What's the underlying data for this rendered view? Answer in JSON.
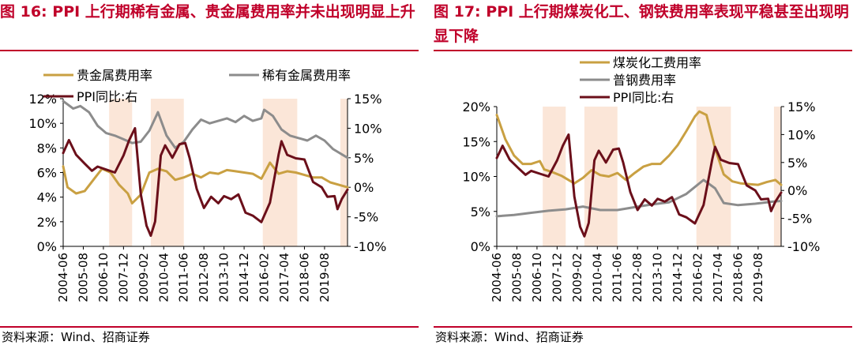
{
  "source_text": "资料来源：Wind、招商证券",
  "x_ticks": [
    "2004-06",
    "2005-08",
    "2006-10",
    "2007-12",
    "2009-02",
    "2010-04",
    "2011-06",
    "2012-08",
    "2013-10",
    "2014-12",
    "2016-02",
    "2017-04",
    "2018-06",
    "2019-08"
  ],
  "colors": {
    "title": "#C0002A",
    "gold": "#C9A042",
    "gray": "#8C8C8C",
    "ppi": "#6B0F1A",
    "band": "#FBE6D8"
  },
  "chart_data": [
    {
      "type": "line",
      "title": "图 16:  PPI 上行期稀有金属、贵金属费用率并未出现明显上升",
      "x_start": "2004-06",
      "x_end": "2020-12",
      "x_ticks": [
        "2004-06",
        "2005-08",
        "2006-10",
        "2007-12",
        "2009-02",
        "2010-04",
        "2011-06",
        "2012-08",
        "2013-10",
        "2014-12",
        "2016-02",
        "2017-04",
        "2018-06",
        "2019-08"
      ],
      "shaded_periods": [
        [
          "2007-02",
          "2008-06"
        ],
        [
          "2009-07",
          "2011-06"
        ],
        [
          "2016-01",
          "2018-01"
        ],
        [
          "2020-07",
          "2020-12"
        ]
      ],
      "y_left": {
        "range": [
          0,
          12
        ],
        "ticks": [
          "0%",
          "2%",
          "4%",
          "6%",
          "8%",
          "10%",
          "12%"
        ]
      },
      "y_right": {
        "range": [
          -10,
          15
        ],
        "ticks": [
          "-10%",
          "-5%",
          "0%",
          "5%",
          "10%",
          "15%"
        ]
      },
      "grid": false,
      "legend": "top",
      "series": [
        {
          "name": "贵金属费用率",
          "axis": "left",
          "color": "#C9A042",
          "points": [
            [
              "2004-06",
              6.5
            ],
            [
              "2004-09",
              4.8
            ],
            [
              "2005-03",
              4.3
            ],
            [
              "2005-09",
              4.5
            ],
            [
              "2006-03",
              5.4
            ],
            [
              "2006-09",
              6.3
            ],
            [
              "2007-03",
              6.0
            ],
            [
              "2007-09",
              5.0
            ],
            [
              "2008-03",
              4.3
            ],
            [
              "2008-06",
              3.5
            ],
            [
              "2008-12",
              4.2
            ],
            [
              "2009-06",
              6.0
            ],
            [
              "2009-12",
              6.3
            ],
            [
              "2010-06",
              6.1
            ],
            [
              "2010-12",
              5.4
            ],
            [
              "2011-06",
              5.6
            ],
            [
              "2011-12",
              5.9
            ],
            [
              "2012-06",
              5.6
            ],
            [
              "2012-12",
              6.0
            ],
            [
              "2013-06",
              5.9
            ],
            [
              "2013-12",
              6.2
            ],
            [
              "2014-06",
              6.1
            ],
            [
              "2014-12",
              6.0
            ],
            [
              "2015-06",
              5.9
            ],
            [
              "2015-12",
              5.5
            ],
            [
              "2016-06",
              6.8
            ],
            [
              "2016-12",
              5.9
            ],
            [
              "2017-06",
              6.1
            ],
            [
              "2017-12",
              6.0
            ],
            [
              "2018-06",
              5.8
            ],
            [
              "2018-12",
              5.6
            ],
            [
              "2019-06",
              5.6
            ],
            [
              "2019-12",
              5.2
            ],
            [
              "2020-06",
              5.0
            ],
            [
              "2020-12",
              4.8
            ]
          ]
        },
        {
          "name": "稀有金属费用率",
          "axis": "left",
          "color": "#8C8C8C",
          "points": [
            [
              "2004-06",
              11.8
            ],
            [
              "2005-01",
              11.2
            ],
            [
              "2005-06",
              11.4
            ],
            [
              "2005-12",
              10.9
            ],
            [
              "2006-06",
              9.8
            ],
            [
              "2006-12",
              9.2
            ],
            [
              "2007-06",
              9.0
            ],
            [
              "2007-12",
              8.7
            ],
            [
              "2008-06",
              8.4
            ],
            [
              "2008-12",
              8.5
            ],
            [
              "2009-06",
              9.4
            ],
            [
              "2009-12",
              10.9
            ],
            [
              "2010-06",
              9.0
            ],
            [
              "2010-12",
              8.0
            ],
            [
              "2011-06",
              8.5
            ],
            [
              "2011-12",
              9.5
            ],
            [
              "2012-06",
              10.3
            ],
            [
              "2012-12",
              10.0
            ],
            [
              "2013-06",
              10.2
            ],
            [
              "2013-12",
              10.4
            ],
            [
              "2014-06",
              10.1
            ],
            [
              "2014-12",
              10.6
            ],
            [
              "2015-06",
              10.2
            ],
            [
              "2015-12",
              10.4
            ],
            [
              "2016-02",
              11.1
            ],
            [
              "2016-08",
              10.6
            ],
            [
              "2017-02",
              9.5
            ],
            [
              "2017-08",
              9.0
            ],
            [
              "2018-02",
              8.8
            ],
            [
              "2018-08",
              8.6
            ],
            [
              "2019-02",
              9.0
            ],
            [
              "2019-08",
              8.6
            ],
            [
              "2020-02",
              7.9
            ],
            [
              "2020-12",
              7.2
            ]
          ]
        },
        {
          "name": "PPI同比:右",
          "axis": "right",
          "color": "#6B0F1A",
          "points": [
            [
              "2004-06",
              5.8
            ],
            [
              "2004-10",
              8.0
            ],
            [
              "2005-03",
              5.5
            ],
            [
              "2005-09",
              4.0
            ],
            [
              "2006-02",
              2.8
            ],
            [
              "2006-06",
              3.5
            ],
            [
              "2006-12",
              3.0
            ],
            [
              "2007-06",
              2.5
            ],
            [
              "2007-12",
              5.4
            ],
            [
              "2008-04",
              8.0
            ],
            [
              "2008-08",
              10.0
            ],
            [
              "2008-12",
              -1.1
            ],
            [
              "2009-04",
              -6.5
            ],
            [
              "2009-07",
              -8.2
            ],
            [
              "2009-10",
              -5.8
            ],
            [
              "2010-02",
              5.4
            ],
            [
              "2010-05",
              7.1
            ],
            [
              "2010-10",
              5.0
            ],
            [
              "2011-03",
              7.3
            ],
            [
              "2011-07",
              7.5
            ],
            [
              "2011-10",
              5.0
            ],
            [
              "2012-03",
              -0.3
            ],
            [
              "2012-08",
              -3.5
            ],
            [
              "2013-01",
              -1.6
            ],
            [
              "2013-06",
              -2.7
            ],
            [
              "2013-10",
              -1.5
            ],
            [
              "2014-03",
              -2.0
            ],
            [
              "2014-08",
              -1.2
            ],
            [
              "2015-01",
              -4.3
            ],
            [
              "2015-06",
              -4.8
            ],
            [
              "2015-12",
              -5.9
            ],
            [
              "2016-06",
              -2.6
            ],
            [
              "2016-12",
              5.5
            ],
            [
              "2017-02",
              7.8
            ],
            [
              "2017-06",
              5.5
            ],
            [
              "2017-12",
              4.9
            ],
            [
              "2018-06",
              4.7
            ],
            [
              "2018-12",
              0.9
            ],
            [
              "2019-06",
              0.0
            ],
            [
              "2019-10",
              -1.6
            ],
            [
              "2020-03",
              -1.5
            ],
            [
              "2020-05",
              -3.7
            ],
            [
              "2020-08",
              -2.0
            ],
            [
              "2020-12",
              -0.4
            ]
          ]
        }
      ]
    },
    {
      "type": "line",
      "title": "图 17:  PPI 上行期煤炭化工、钢铁费用率表现平稳甚至出现明显下降",
      "x_start": "2004-06",
      "x_end": "2020-12",
      "x_ticks": [
        "2004-06",
        "2005-08",
        "2006-10",
        "2007-12",
        "2009-02",
        "2010-04",
        "2011-06",
        "2012-08",
        "2013-10",
        "2014-12",
        "2016-02",
        "2017-04",
        "2018-06",
        "2019-08"
      ],
      "shaded_periods": [
        [
          "2007-02",
          "2008-06"
        ],
        [
          "2009-07",
          "2011-06"
        ],
        [
          "2016-01",
          "2018-01"
        ],
        [
          "2020-07",
          "2020-12"
        ]
      ],
      "y_left": {
        "range": [
          0,
          20
        ],
        "ticks": [
          "0%",
          "5%",
          "10%",
          "15%",
          "20%"
        ]
      },
      "y_right": {
        "range": [
          -10,
          15
        ],
        "ticks": [
          "-10%",
          "-5%",
          "0%",
          "5%",
          "10%",
          "15%"
        ]
      },
      "grid": false,
      "legend": "top",
      "series": [
        {
          "name": "煤炭化工费用率",
          "axis": "left",
          "color": "#C9A042",
          "points": [
            [
              "2004-06",
              18.8
            ],
            [
              "2004-12",
              15.3
            ],
            [
              "2005-06",
              13.0
            ],
            [
              "2005-12",
              11.8
            ],
            [
              "2006-06",
              11.8
            ],
            [
              "2006-12",
              12.2
            ],
            [
              "2007-03",
              11.0
            ],
            [
              "2007-09",
              10.6
            ],
            [
              "2008-03",
              10.1
            ],
            [
              "2008-12",
              9.0
            ],
            [
              "2009-06",
              9.8
            ],
            [
              "2009-12",
              10.9
            ],
            [
              "2010-06",
              10.2
            ],
            [
              "2010-12",
              10.0
            ],
            [
              "2011-06",
              10.5
            ],
            [
              "2011-12",
              9.5
            ],
            [
              "2012-06",
              10.5
            ],
            [
              "2012-12",
              11.4
            ],
            [
              "2013-06",
              11.8
            ],
            [
              "2013-12",
              11.8
            ],
            [
              "2014-06",
              13.0
            ],
            [
              "2014-12",
              14.5
            ],
            [
              "2015-06",
              16.5
            ],
            [
              "2015-12",
              18.6
            ],
            [
              "2016-03",
              19.3
            ],
            [
              "2016-08",
              18.8
            ],
            [
              "2017-02",
              14.0
            ],
            [
              "2017-08",
              10.3
            ],
            [
              "2018-02",
              9.3
            ],
            [
              "2018-08",
              9.0
            ],
            [
              "2019-02",
              8.9
            ],
            [
              "2019-08",
              8.8
            ],
            [
              "2020-02",
              9.2
            ],
            [
              "2020-08",
              9.5
            ],
            [
              "2020-12",
              8.8
            ]
          ]
        },
        {
          "name": "普钢费用率",
          "axis": "left",
          "color": "#8C8C8C",
          "points": [
            [
              "2004-06",
              4.3
            ],
            [
              "2005-06",
              4.5
            ],
            [
              "2006-06",
              4.8
            ],
            [
              "2007-06",
              5.1
            ],
            [
              "2008-06",
              5.3
            ],
            [
              "2009-06",
              5.7
            ],
            [
              "2010-06",
              5.2
            ],
            [
              "2011-06",
              5.2
            ],
            [
              "2012-06",
              5.6
            ],
            [
              "2013-06",
              6.0
            ],
            [
              "2014-06",
              6.3
            ],
            [
              "2015-06",
              7.5
            ],
            [
              "2016-06",
              9.5
            ],
            [
              "2017-02",
              8.3
            ],
            [
              "2017-08",
              6.2
            ],
            [
              "2018-06",
              5.9
            ],
            [
              "2019-06",
              6.1
            ],
            [
              "2020-06",
              6.4
            ],
            [
              "2020-12",
              6.5
            ]
          ]
        },
        {
          "name": "PPI同比:右",
          "axis": "right",
          "color": "#6B0F1A",
          "points": [
            [
              "2004-06",
              5.8
            ],
            [
              "2004-10",
              8.0
            ],
            [
              "2005-03",
              5.5
            ],
            [
              "2005-09",
              4.0
            ],
            [
              "2006-02",
              2.8
            ],
            [
              "2006-06",
              3.5
            ],
            [
              "2006-12",
              3.0
            ],
            [
              "2007-06",
              2.5
            ],
            [
              "2007-12",
              5.4
            ],
            [
              "2008-04",
              8.0
            ],
            [
              "2008-08",
              10.0
            ],
            [
              "2008-12",
              -1.1
            ],
            [
              "2009-04",
              -6.5
            ],
            [
              "2009-07",
              -8.2
            ],
            [
              "2009-10",
              -5.8
            ],
            [
              "2010-02",
              5.4
            ],
            [
              "2010-05",
              7.1
            ],
            [
              "2010-10",
              5.0
            ],
            [
              "2011-03",
              7.3
            ],
            [
              "2011-07",
              7.5
            ],
            [
              "2011-10",
              5.0
            ],
            [
              "2012-03",
              -0.3
            ],
            [
              "2012-08",
              -3.5
            ],
            [
              "2013-01",
              -1.6
            ],
            [
              "2013-06",
              -2.7
            ],
            [
              "2013-10",
              -1.5
            ],
            [
              "2014-03",
              -2.0
            ],
            [
              "2014-08",
              -1.2
            ],
            [
              "2015-01",
              -4.3
            ],
            [
              "2015-06",
              -4.8
            ],
            [
              "2015-12",
              -5.9
            ],
            [
              "2016-06",
              -2.6
            ],
            [
              "2016-12",
              5.5
            ],
            [
              "2017-02",
              7.8
            ],
            [
              "2017-06",
              5.5
            ],
            [
              "2017-12",
              4.9
            ],
            [
              "2018-06",
              4.7
            ],
            [
              "2018-12",
              0.9
            ],
            [
              "2019-06",
              0.0
            ],
            [
              "2019-10",
              -1.6
            ],
            [
              "2020-03",
              -1.5
            ],
            [
              "2020-05",
              -3.7
            ],
            [
              "2020-08",
              -2.0
            ],
            [
              "2020-12",
              -0.4
            ]
          ]
        }
      ]
    }
  ]
}
